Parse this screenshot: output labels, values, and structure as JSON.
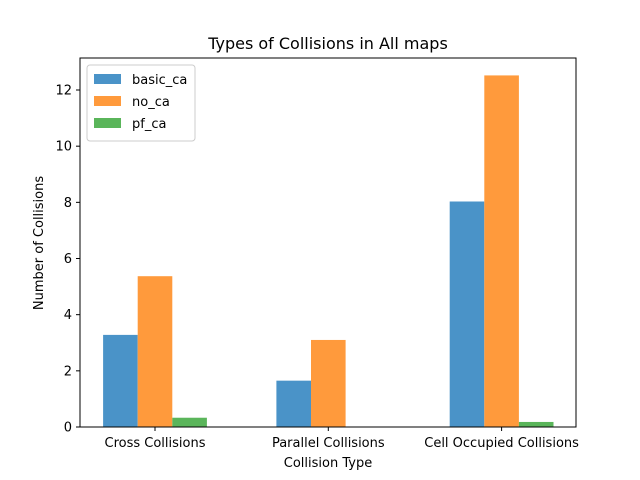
{
  "chart_data": {
    "type": "bar",
    "title": "Types of Collisions in All maps",
    "xlabel": "Collision Type",
    "ylabel": "Number of Collisions",
    "categories": [
      "Cross Collisions",
      "Parallel Collisions",
      "Cell Occupied Collisions"
    ],
    "series": [
      {
        "name": "basic_ca",
        "color": "#4a93c8",
        "values": [
          3.28,
          1.65,
          8.03
        ]
      },
      {
        "name": "no_ca",
        "color": "#ff9a3c",
        "values": [
          5.37,
          3.1,
          12.52
        ]
      },
      {
        "name": "pf_ca",
        "color": "#5ab55a",
        "values": [
          0.33,
          0.0,
          0.18
        ]
      }
    ],
    "ylim": [
      0,
      13.14
    ],
    "yticks": [
      0,
      2,
      4,
      6,
      8,
      10,
      12
    ],
    "grid": false,
    "legend_position": "top-left"
  }
}
